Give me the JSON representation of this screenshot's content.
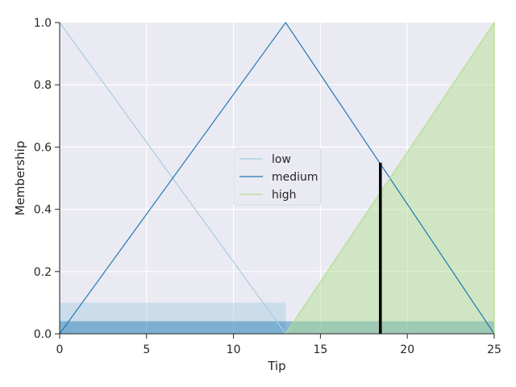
{
  "chart_data": {
    "type": "line",
    "xlabel": "Tip",
    "ylabel": "Membership",
    "xlim": [
      0,
      25
    ],
    "ylim": [
      0,
      1
    ],
    "xticks": [
      0,
      5,
      10,
      15,
      20,
      25
    ],
    "yticks": [
      0.0,
      0.2,
      0.4,
      0.6,
      0.8,
      1.0
    ],
    "xtick_labels": [
      "0",
      "5",
      "10",
      "15",
      "20",
      "25"
    ],
    "ytick_labels": [
      "0.0",
      "0.2",
      "0.4",
      "0.6",
      "0.8",
      "1.0"
    ],
    "grid": true,
    "legend_position": "center",
    "series": [
      {
        "name": "low",
        "x": [
          0,
          0,
          13
        ],
        "y": [
          0,
          1,
          0
        ],
        "color": "#a6cee3"
      },
      {
        "name": "medium",
        "x": [
          0,
          13,
          25
        ],
        "y": [
          0,
          1,
          0
        ],
        "color": "#1f78b4"
      },
      {
        "name": "high",
        "x": [
          13,
          25,
          25
        ],
        "y": [
          0,
          1,
          0
        ],
        "color": "#b2df8a"
      }
    ],
    "activation_regions": [
      {
        "series": "low",
        "x": [
          0,
          13
        ],
        "level": 0.1,
        "color": "#a6cee3"
      },
      {
        "series": "medium",
        "x": [
          0,
          25
        ],
        "level": 0.04,
        "color": "#1f78b4"
      },
      {
        "series": "high",
        "x": [
          13,
          25
        ],
        "level": 1.0,
        "color": "#b2df8a"
      }
    ],
    "result_marker": {
      "x": 18.45,
      "y": 0.55,
      "color": "#000000"
    }
  }
}
